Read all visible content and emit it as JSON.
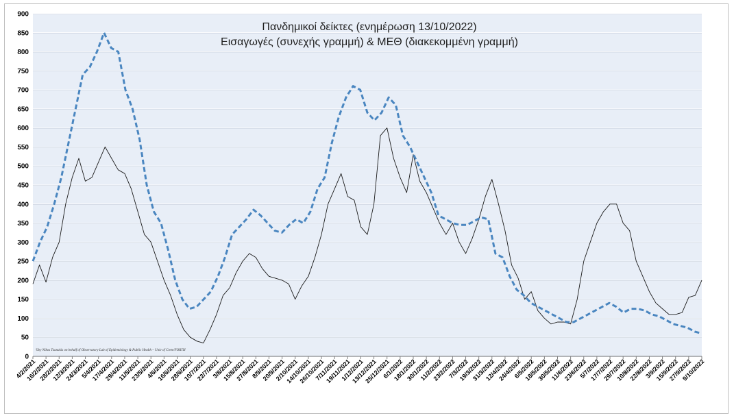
{
  "chart_data": {
    "type": "line",
    "title": "Πανδημικοί δείκτες (ενημέρωση 13/10/2022)",
    "subtitle": "Εισαγωγές (συνεχής γραμμή) & ΜΕΘ (διακεκομμένη γραμμή)",
    "credit": "©by Nikos Tzanakis on behalf of Observatory Lab of Epidemiology & Public Health – Univ of Crete/FORTH",
    "xlabel": "",
    "ylabel": "",
    "ylim": [
      0,
      900
    ],
    "yticks": [
      "0",
      "50",
      "100",
      "150",
      "200",
      "250",
      "300",
      "350",
      "400",
      "450",
      "500",
      "550",
      "600",
      "650",
      "700",
      "750",
      "800",
      "850",
      "900"
    ],
    "x_tick_labels": [
      "4/2/2021",
      "16/2/2021",
      "28/2/2021",
      "12/3/2021",
      "24/3/2021",
      "5/4/2021",
      "17/4/2021",
      "29/4/2021",
      "11/5/2021",
      "23/5/2021",
      "4/6/2021",
      "16/6/2021",
      "28/6/2021",
      "10/7/2021",
      "22/7/2021",
      "3/8/2021",
      "15/8/2021",
      "27/8/2021",
      "8/9/2021",
      "20/9/2021",
      "2/10/2021",
      "14/10/2021",
      "26/10/2021",
      "7/11/2021",
      "19/11/2021",
      "1/12/2021",
      "13/12/2021",
      "25/12/2021",
      "6/1/2022",
      "18/1/2022",
      "30/1/2022",
      "11/2/2022",
      "23/2/2022",
      "7/3/2022",
      "19/3/2022",
      "31/3/2022",
      "12/4/2022",
      "24/4/2022",
      "6/5/2022",
      "18/5/2022",
      "30/5/2022",
      "11/6/2022",
      "23/6/2022",
      "5/7/2022",
      "17/7/2022",
      "29/7/2022",
      "10/8/2022",
      "22/8/2022",
      "3/9/2022",
      "15/9/2022",
      "27/9/2022",
      "9/10/2022"
    ],
    "grid": true,
    "series": [
      {
        "name": "Εισαγωγές",
        "style": "solid",
        "color": "#1a1a1a",
        "values": [
          190,
          240,
          195,
          260,
          300,
          400,
          470,
          520,
          460,
          470,
          510,
          550,
          520,
          490,
          480,
          440,
          380,
          320,
          300,
          250,
          200,
          160,
          110,
          70,
          50,
          40,
          35,
          70,
          110,
          160,
          180,
          220,
          250,
          270,
          260,
          230,
          210,
          205,
          200,
          190,
          150,
          185,
          210,
          260,
          320,
          400,
          440,
          480,
          420,
          410,
          340,
          320,
          400,
          580,
          600,
          520,
          470,
          430,
          530,
          460,
          430,
          390,
          350,
          320,
          350,
          300,
          270,
          310,
          360,
          420,
          465,
          400,
          330,
          240,
          205,
          150,
          170,
          120,
          100,
          85,
          90,
          90,
          85,
          150,
          250,
          300,
          350,
          380,
          400,
          400,
          350,
          330,
          250,
          210,
          170,
          140,
          125,
          110,
          110,
          115,
          155,
          160,
          200
        ]
      },
      {
        "name": "ΜΕΘ",
        "style": "dashed",
        "color": "#4a86c0",
        "values": [
          250,
          300,
          340,
          400,
          470,
          560,
          650,
          740,
          760,
          800,
          850,
          810,
          800,
          700,
          650,
          570,
          450,
          380,
          350,
          280,
          200,
          150,
          125,
          130,
          150,
          170,
          210,
          260,
          320,
          340,
          360,
          385,
          370,
          350,
          330,
          325,
          345,
          360,
          350,
          380,
          440,
          470,
          560,
          630,
          680,
          710,
          700,
          640,
          620,
          640,
          680,
          660,
          580,
          550,
          510,
          470,
          430,
          370,
          360,
          350,
          345,
          345,
          355,
          365,
          360,
          270,
          260,
          210,
          175,
          160,
          140,
          130,
          120,
          110,
          100,
          90,
          90,
          100,
          110,
          120,
          130,
          140,
          130,
          115,
          125,
          125,
          120,
          110,
          105,
          95,
          85,
          80,
          75,
          65,
          60
        ]
      }
    ]
  }
}
